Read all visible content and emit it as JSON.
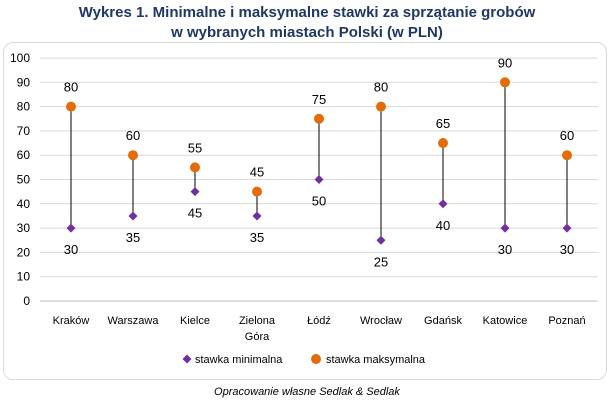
{
  "title_line1": "Wykres 1. Minimalne i maksymalne stawki za sprzątanie grobów",
  "title_line2": "w wybranych miastach Polski (w PLN)",
  "source": "Opracowanie własne Sedlak & Sedlak",
  "chart_data": {
    "type": "scatter",
    "categories": [
      [
        "Kraków"
      ],
      [
        "Warszawa"
      ],
      [
        "Kielce"
      ],
      [
        "Zielona",
        "Góra"
      ],
      [
        "Łódź"
      ],
      [
        "Wrocław"
      ],
      [
        "Gdańsk"
      ],
      [
        "Katowice"
      ],
      [
        "Poznań"
      ]
    ],
    "series": [
      {
        "name": "stawka minimalna",
        "values": [
          30,
          35,
          45,
          35,
          50,
          25,
          40,
          30,
          30
        ],
        "color": "#7030a0",
        "marker": "diamond"
      },
      {
        "name": "stawka maksymalna",
        "values": [
          80,
          60,
          55,
          45,
          75,
          80,
          65,
          90,
          60
        ],
        "color": "#e36c09",
        "marker": "circle"
      }
    ],
    "yticks": [
      0,
      10,
      20,
      30,
      40,
      50,
      60,
      70,
      80,
      90,
      100
    ],
    "ylim": [
      0,
      100
    ],
    "grid": true,
    "connectors": true,
    "legend_position": "bottom"
  }
}
